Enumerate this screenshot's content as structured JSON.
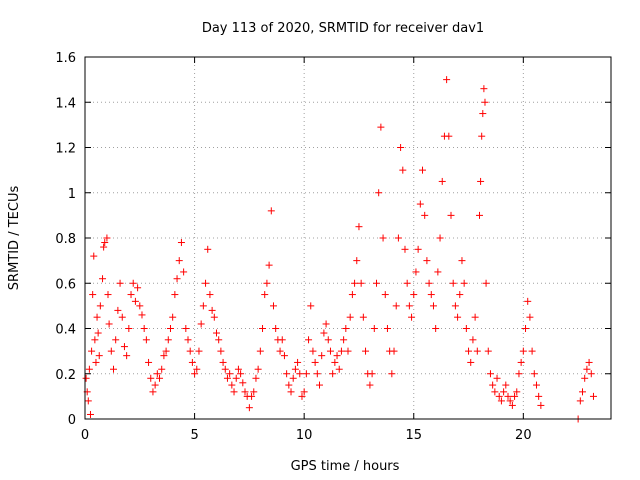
{
  "chart_data": {
    "type": "scatter",
    "title": "Day 113 of 2020, SRMTID for receiver dav1",
    "xlabel": "GPS time / hours",
    "ylabel": "SRMTID / TECUs",
    "xlim": [
      0,
      24
    ],
    "ylim": [
      0,
      1.6
    ],
    "xticks": [
      0,
      5,
      10,
      15,
      20
    ],
    "xtick_labels": [
      "0",
      "5",
      "10",
      "15",
      "20"
    ],
    "yticks": [
      0,
      0.2,
      0.4,
      0.6,
      0.8,
      1.0,
      1.2,
      1.4,
      1.6
    ],
    "ytick_labels": [
      "0",
      "0.2",
      "0.4",
      "0.6",
      "0.8",
      "1",
      "1.2",
      "1.4",
      "1.6"
    ],
    "grid": true,
    "marker": "+",
    "point_color": "#ff0000",
    "series": [
      {
        "name": "SRMTID",
        "points": [
          [
            0.05,
            0.18
          ],
          [
            0.1,
            0.12
          ],
          [
            0.15,
            0.08
          ],
          [
            0.2,
            0.22
          ],
          [
            0.25,
            0.02
          ],
          [
            0.3,
            0.3
          ],
          [
            0.35,
            0.55
          ],
          [
            0.4,
            0.72
          ],
          [
            0.45,
            0.35
          ],
          [
            0.5,
            0.25
          ],
          [
            0.55,
            0.45
          ],
          [
            0.6,
            0.38
          ],
          [
            0.65,
            0.28
          ],
          [
            0.7,
            0.5
          ],
          [
            0.8,
            0.62
          ],
          [
            0.85,
            0.76
          ],
          [
            0.9,
            0.78
          ],
          [
            1.0,
            0.8
          ],
          [
            1.05,
            0.55
          ],
          [
            1.1,
            0.42
          ],
          [
            1.2,
            0.3
          ],
          [
            1.3,
            0.22
          ],
          [
            1.4,
            0.35
          ],
          [
            1.5,
            0.48
          ],
          [
            1.6,
            0.6
          ],
          [
            1.7,
            0.45
          ],
          [
            1.8,
            0.32
          ],
          [
            1.9,
            0.28
          ],
          [
            2.0,
            0.4
          ],
          [
            2.1,
            0.55
          ],
          [
            2.2,
            0.6
          ],
          [
            2.3,
            0.52
          ],
          [
            2.4,
            0.58
          ],
          [
            2.5,
            0.5
          ],
          [
            2.6,
            0.46
          ],
          [
            2.7,
            0.4
          ],
          [
            2.8,
            0.35
          ],
          [
            2.9,
            0.25
          ],
          [
            3.0,
            0.18
          ],
          [
            3.1,
            0.12
          ],
          [
            3.2,
            0.15
          ],
          [
            3.3,
            0.2
          ],
          [
            3.4,
            0.18
          ],
          [
            3.5,
            0.22
          ],
          [
            3.6,
            0.28
          ],
          [
            3.7,
            0.3
          ],
          [
            3.8,
            0.35
          ],
          [
            3.9,
            0.4
          ],
          [
            4.0,
            0.45
          ],
          [
            4.1,
            0.55
          ],
          [
            4.2,
            0.62
          ],
          [
            4.3,
            0.7
          ],
          [
            4.4,
            0.78
          ],
          [
            4.5,
            0.65
          ],
          [
            4.6,
            0.4
          ],
          [
            4.7,
            0.35
          ],
          [
            4.8,
            0.3
          ],
          [
            4.9,
            0.25
          ],
          [
            5.0,
            0.2
          ],
          [
            5.1,
            0.22
          ],
          [
            5.2,
            0.3
          ],
          [
            5.3,
            0.42
          ],
          [
            5.4,
            0.5
          ],
          [
            5.5,
            0.6
          ],
          [
            5.6,
            0.75
          ],
          [
            5.7,
            0.55
          ],
          [
            5.8,
            0.48
          ],
          [
            5.9,
            0.45
          ],
          [
            6.0,
            0.38
          ],
          [
            6.1,
            0.35
          ],
          [
            6.2,
            0.3
          ],
          [
            6.3,
            0.25
          ],
          [
            6.4,
            0.22
          ],
          [
            6.5,
            0.18
          ],
          [
            6.6,
            0.2
          ],
          [
            6.7,
            0.15
          ],
          [
            6.8,
            0.12
          ],
          [
            6.9,
            0.18
          ],
          [
            7.0,
            0.22
          ],
          [
            7.1,
            0.2
          ],
          [
            7.2,
            0.16
          ],
          [
            7.3,
            0.12
          ],
          [
            7.4,
            0.1
          ],
          [
            7.5,
            0.05
          ],
          [
            7.6,
            0.1
          ],
          [
            7.7,
            0.12
          ],
          [
            7.8,
            0.18
          ],
          [
            7.9,
            0.22
          ],
          [
            8.0,
            0.3
          ],
          [
            8.1,
            0.4
          ],
          [
            8.2,
            0.55
          ],
          [
            8.3,
            0.6
          ],
          [
            8.4,
            0.68
          ],
          [
            8.5,
            0.92
          ],
          [
            8.6,
            0.5
          ],
          [
            8.7,
            0.4
          ],
          [
            8.8,
            0.35
          ],
          [
            8.9,
            0.3
          ],
          [
            9.0,
            0.35
          ],
          [
            9.1,
            0.28
          ],
          [
            9.2,
            0.2
          ],
          [
            9.3,
            0.15
          ],
          [
            9.4,
            0.12
          ],
          [
            9.5,
            0.18
          ],
          [
            9.6,
            0.22
          ],
          [
            9.7,
            0.25
          ],
          [
            9.8,
            0.2
          ],
          [
            9.9,
            0.1
          ],
          [
            10.0,
            0.12
          ],
          [
            10.1,
            0.2
          ],
          [
            10.2,
            0.35
          ],
          [
            10.3,
            0.5
          ],
          [
            10.4,
            0.3
          ],
          [
            10.5,
            0.25
          ],
          [
            10.6,
            0.2
          ],
          [
            10.7,
            0.15
          ],
          [
            10.8,
            0.28
          ],
          [
            10.9,
            0.38
          ],
          [
            11.0,
            0.42
          ],
          [
            11.1,
            0.35
          ],
          [
            11.2,
            0.3
          ],
          [
            11.3,
            0.2
          ],
          [
            11.4,
            0.25
          ],
          [
            11.5,
            0.28
          ],
          [
            11.6,
            0.22
          ],
          [
            11.7,
            0.3
          ],
          [
            11.8,
            0.35
          ],
          [
            11.9,
            0.4
          ],
          [
            12.0,
            0.3
          ],
          [
            12.1,
            0.45
          ],
          [
            12.2,
            0.55
          ],
          [
            12.3,
            0.6
          ],
          [
            12.4,
            0.7
          ],
          [
            12.5,
            0.85
          ],
          [
            12.6,
            0.6
          ],
          [
            12.7,
            0.45
          ],
          [
            12.8,
            0.3
          ],
          [
            12.9,
            0.2
          ],
          [
            13.0,
            0.15
          ],
          [
            13.1,
            0.2
          ],
          [
            13.2,
            0.4
          ],
          [
            13.3,
            0.6
          ],
          [
            13.4,
            1.0
          ],
          [
            13.5,
            1.29
          ],
          [
            13.6,
            0.8
          ],
          [
            13.7,
            0.55
          ],
          [
            13.8,
            0.4
          ],
          [
            13.9,
            0.3
          ],
          [
            14.0,
            0.2
          ],
          [
            14.1,
            0.3
          ],
          [
            14.2,
            0.5
          ],
          [
            14.3,
            0.8
          ],
          [
            14.4,
            1.2
          ],
          [
            14.5,
            1.1
          ],
          [
            14.6,
            0.75
          ],
          [
            14.7,
            0.6
          ],
          [
            14.8,
            0.5
          ],
          [
            14.9,
            0.45
          ],
          [
            15.0,
            0.55
          ],
          [
            15.1,
            0.65
          ],
          [
            15.2,
            0.75
          ],
          [
            15.3,
            0.95
          ],
          [
            15.4,
            1.1
          ],
          [
            15.5,
            0.9
          ],
          [
            15.6,
            0.7
          ],
          [
            15.7,
            0.6
          ],
          [
            15.8,
            0.55
          ],
          [
            15.9,
            0.5
          ],
          [
            16.0,
            0.4
          ],
          [
            16.1,
            0.65
          ],
          [
            16.2,
            0.8
          ],
          [
            16.3,
            1.05
          ],
          [
            16.4,
            1.25
          ],
          [
            16.5,
            1.5
          ],
          [
            16.6,
            1.25
          ],
          [
            16.7,
            0.9
          ],
          [
            16.8,
            0.6
          ],
          [
            16.9,
            0.5
          ],
          [
            17.0,
            0.45
          ],
          [
            17.1,
            0.55
          ],
          [
            17.2,
            0.7
          ],
          [
            17.3,
            0.6
          ],
          [
            17.4,
            0.4
          ],
          [
            17.5,
            0.3
          ],
          [
            17.6,
            0.25
          ],
          [
            17.7,
            0.35
          ],
          [
            17.8,
            0.45
          ],
          [
            17.9,
            0.3
          ],
          [
            18.0,
            0.9
          ],
          [
            18.05,
            1.05
          ],
          [
            18.1,
            1.25
          ],
          [
            18.15,
            1.35
          ],
          [
            18.2,
            1.46
          ],
          [
            18.25,
            1.4
          ],
          [
            18.3,
            0.6
          ],
          [
            18.4,
            0.3
          ],
          [
            18.5,
            0.2
          ],
          [
            18.6,
            0.15
          ],
          [
            18.7,
            0.12
          ],
          [
            18.8,
            0.18
          ],
          [
            18.9,
            0.1
          ],
          [
            19.0,
            0.08
          ],
          [
            19.1,
            0.12
          ],
          [
            19.2,
            0.15
          ],
          [
            19.3,
            0.1
          ],
          [
            19.4,
            0.08
          ],
          [
            19.5,
            0.06
          ],
          [
            19.6,
            0.1
          ],
          [
            19.7,
            0.12
          ],
          [
            19.8,
            0.2
          ],
          [
            19.9,
            0.25
          ],
          [
            20.0,
            0.3
          ],
          [
            20.1,
            0.4
          ],
          [
            20.2,
            0.52
          ],
          [
            20.3,
            0.45
          ],
          [
            20.4,
            0.3
          ],
          [
            20.5,
            0.2
          ],
          [
            20.6,
            0.15
          ],
          [
            20.7,
            0.1
          ],
          [
            20.8,
            0.06
          ],
          [
            22.5,
            0.0
          ],
          [
            22.6,
            0.08
          ],
          [
            22.7,
            0.12
          ],
          [
            22.8,
            0.18
          ],
          [
            22.9,
            0.22
          ],
          [
            23.0,
            0.25
          ],
          [
            23.1,
            0.2
          ],
          [
            23.2,
            0.1
          ]
        ]
      }
    ]
  }
}
